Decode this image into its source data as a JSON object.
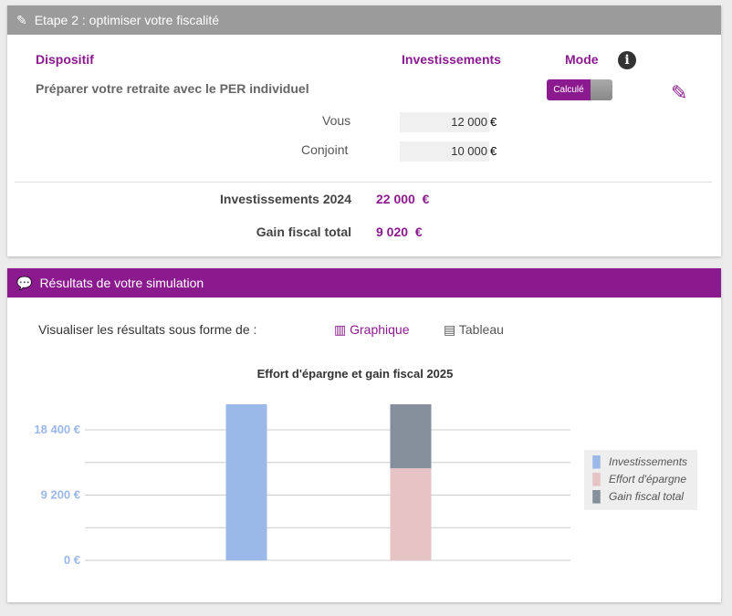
{
  "step2": {
    "title": "Etape 2 : optimiser votre fiscalité",
    "col_dispositif": "Dispositif",
    "col_investissements": "Investissements",
    "col_mode": "Mode",
    "row_label": "Préparer votre retraite avec le PER individuel",
    "mode_toggle": "Calculé",
    "vous_label": "Vous",
    "vous_value": "12 000",
    "conjoint_label": "Conjoint",
    "conjoint_value": "10 000",
    "currency": "€",
    "invest_total_label": "Investissements 2024",
    "invest_total_value": "22 000  €",
    "gain_label": "Gain fiscal total",
    "gain_value": "9 020  €"
  },
  "results": {
    "title": "Résultats de votre simulation",
    "view_label": "Visualiser les résultats sous forme de :",
    "graph_tab": "Graphique",
    "table_tab": "Tableau"
  },
  "colors": {
    "purple": "#8b1a8f",
    "header_gray": "#9b9b9b",
    "invest": "#9ab8e8",
    "effort": "#e6c3c5",
    "gain": "#858f9c"
  },
  "chart_data": {
    "type": "bar",
    "title": "Effort d'épargne et gain fiscal 2025",
    "ylim": [
      0,
      23000
    ],
    "yticks": [
      {
        "value": 0,
        "label": "0 €"
      },
      {
        "value": 9200,
        "label": "9 200 €"
      },
      {
        "value": 18400,
        "label": "18 400 €"
      }
    ],
    "gridlines": [
      0,
      4600,
      9200,
      13800,
      18400
    ],
    "legend_position": "right",
    "series": [
      {
        "name": "Investissements",
        "values": [
          22000,
          0
        ]
      },
      {
        "name": "Effort d'épargne",
        "values": [
          0,
          12980
        ]
      },
      {
        "name": "Gain fiscal total",
        "values": [
          0,
          9020
        ]
      }
    ]
  }
}
